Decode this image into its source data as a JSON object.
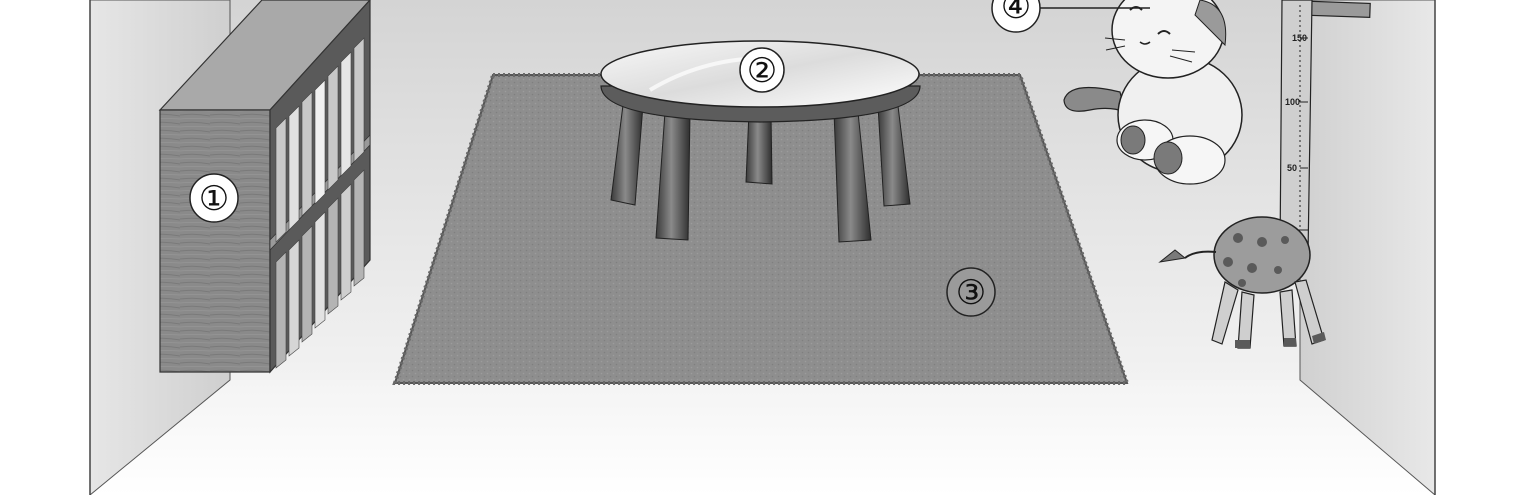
{
  "labels": {
    "bookshelf": "①",
    "table": "②",
    "rug": "③",
    "plush": "④"
  },
  "height_chart": {
    "ticks": [
      "150",
      "100",
      "50"
    ]
  }
}
